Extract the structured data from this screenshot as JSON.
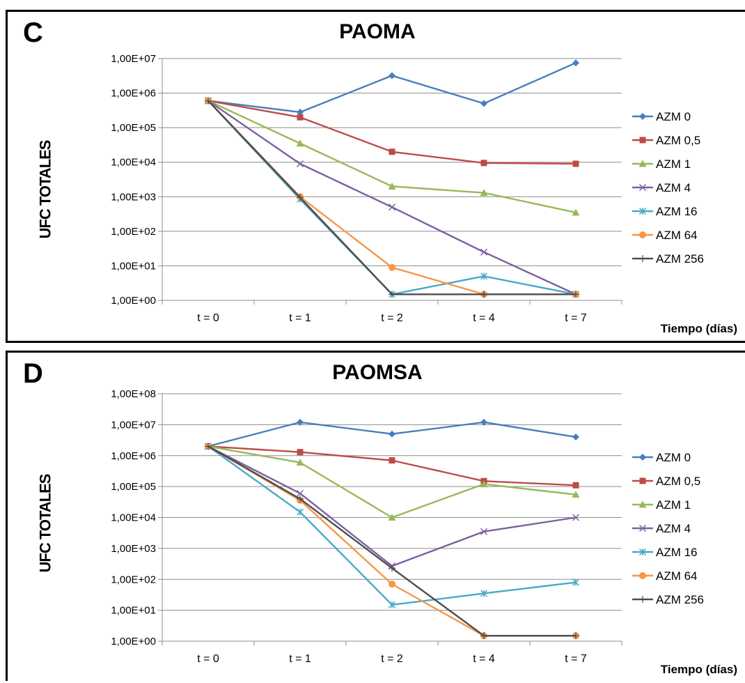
{
  "chart_data": [
    {
      "panel_letter": "C",
      "type": "line",
      "title": "PAOMA",
      "xlabel": "Tiempo (días)",
      "ylabel": "UFC TOTALES",
      "yscale": "log",
      "ylim": [
        1,
        10000000
      ],
      "yticks": [
        "1,00E+00",
        "1,00E+01",
        "1,00E+02",
        "1,00E+03",
        "1,00E+04",
        "1,00E+05",
        "1,00E+06",
        "1,00E+07"
      ],
      "categories": [
        "t = 0",
        "t = 1",
        "t = 2",
        "t = 4",
        "t = 7"
      ],
      "grid": "horizontal",
      "legend_position": "right",
      "series": [
        {
          "name": "AZM 0",
          "color": "#4a7ebb",
          "marker": "diamond",
          "values": [
            600000,
            280000,
            3200000,
            500000,
            7500000
          ]
        },
        {
          "name": "AZM 0,5",
          "color": "#be4b48",
          "marker": "square",
          "values": [
            600000,
            200000,
            20000,
            9500,
            9000
          ]
        },
        {
          "name": "AZM 1",
          "color": "#98b954",
          "marker": "triangle",
          "values": [
            600000,
            35000,
            2000,
            1300,
            350
          ]
        },
        {
          "name": "AZM 4",
          "color": "#7d60a0",
          "marker": "x",
          "values": [
            600000,
            9000,
            500,
            25,
            1.5
          ]
        },
        {
          "name": "AZM 16",
          "color": "#46aac5",
          "marker": "star",
          "values": [
            600000,
            850,
            1.5,
            5,
            1.5
          ]
        },
        {
          "name": "AZM 64",
          "color": "#f79646",
          "marker": "circle",
          "values": [
            600000,
            1000,
            9,
            1.5,
            1.5
          ]
        },
        {
          "name": "AZM 256",
          "color": "#4d4d4d",
          "marker": "plus",
          "values": [
            600000,
            950,
            1.5,
            1.5,
            1.5
          ]
        }
      ]
    },
    {
      "panel_letter": "D",
      "type": "line",
      "title": "PAOMSA",
      "xlabel": "Tiempo (días)",
      "ylabel": "UFC TOTALES",
      "yscale": "log",
      "ylim": [
        1,
        100000000
      ],
      "yticks": [
        "1,00E+00",
        "1,00E+01",
        "1,00E+02",
        "1,00E+03",
        "1,00E+04",
        "1,00E+05",
        "1,00E+06",
        "1,00E+07",
        "1,00E+08"
      ],
      "categories": [
        "t = 0",
        "t = 1",
        "t = 2",
        "t = 4",
        "t = 7"
      ],
      "grid": "horizontal",
      "legend_position": "right",
      "series": [
        {
          "name": "AZM 0",
          "color": "#4a7ebb",
          "marker": "diamond",
          "values": [
            2000000,
            12000000,
            5000000,
            12000000,
            4000000
          ]
        },
        {
          "name": "AZM 0,5",
          "color": "#be4b48",
          "marker": "square",
          "values": [
            2000000,
            1300000,
            700000,
            150000,
            110000
          ]
        },
        {
          "name": "AZM 1",
          "color": "#98b954",
          "marker": "triangle",
          "values": [
            2000000,
            600000,
            10000,
            120000,
            55000
          ]
        },
        {
          "name": "AZM 4",
          "color": "#7d60a0",
          "marker": "x",
          "values": [
            2000000,
            60000,
            270,
            3500,
            10000
          ]
        },
        {
          "name": "AZM 16",
          "color": "#46aac5",
          "marker": "star",
          "values": [
            2000000,
            15000,
            15,
            35,
            80
          ]
        },
        {
          "name": "AZM 64",
          "color": "#f79646",
          "marker": "circle",
          "values": [
            2000000,
            36000,
            70,
            1.5,
            1.5
          ]
        },
        {
          "name": "AZM 256",
          "color": "#4d4d4d",
          "marker": "plus",
          "values": [
            2000000,
            40000,
            230,
            1.5,
            1.5
          ]
        }
      ]
    }
  ]
}
